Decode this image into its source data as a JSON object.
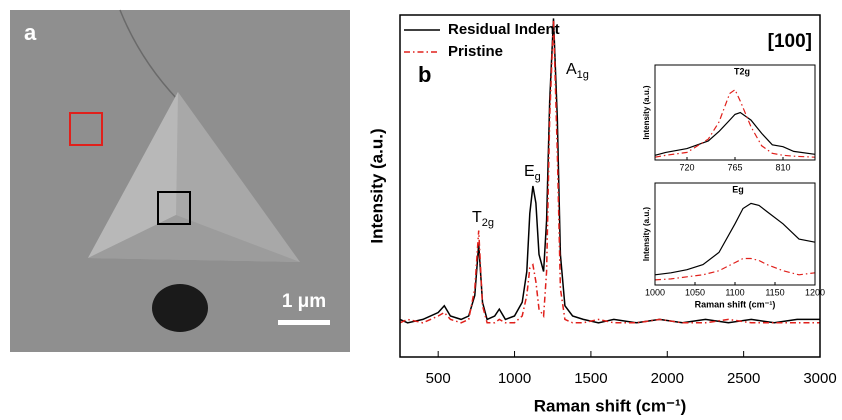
{
  "panel_a": {
    "label": "a",
    "scale_bar": "1 μm"
  },
  "chart_data": [
    {
      "type": "line",
      "panel_label": "b",
      "annotation": "[100]",
      "peak_labels": [
        {
          "text": "T",
          "sub": "2g"
        },
        {
          "text": "E",
          "sub": "g"
        },
        {
          "text": "A",
          "sub": "1g"
        }
      ],
      "xlabel": "Raman shift (cm⁻¹)",
      "ylabel": "Intensity (a.u.)",
      "xlim": [
        250,
        3000
      ],
      "xticks": [
        500,
        1000,
        1500,
        2000,
        2500,
        3000
      ],
      "ylim": [
        0,
        100
      ],
      "x": [
        250,
        300,
        400,
        500,
        540,
        580,
        650,
        700,
        740,
        765,
        790,
        820,
        870,
        900,
        940,
        1000,
        1050,
        1080,
        1100,
        1120,
        1140,
        1160,
        1190,
        1210,
        1230,
        1255,
        1280,
        1300,
        1330,
        1380,
        1450,
        1550,
        1650,
        1800,
        1950,
        2100,
        2250,
        2400,
        2550,
        2700,
        2850,
        3000
      ],
      "series": [
        {
          "name": "Residual Indent",
          "color": "#000000",
          "style": "solid",
          "values": [
            11,
            10,
            11,
            13,
            15,
            12,
            11,
            12,
            18,
            33,
            16,
            11,
            12,
            14,
            11,
            12,
            16,
            25,
            42,
            50,
            45,
            30,
            25,
            40,
            75,
            99,
            70,
            30,
            15,
            12,
            11,
            10,
            11,
            10,
            11,
            10,
            11,
            10,
            11,
            10,
            11,
            11
          ]
        },
        {
          "name": "Pristine",
          "color": "#e0201b",
          "style": "dashdot",
          "values": [
            10,
            11,
            10,
            12,
            13,
            11,
            10,
            11,
            20,
            37,
            15,
            10,
            10,
            11,
            10,
            10,
            12,
            18,
            26,
            27,
            22,
            14,
            12,
            25,
            70,
            98.5,
            60,
            20,
            11,
            10,
            10,
            11,
            10,
            10,
            11,
            10,
            10,
            11,
            10,
            10,
            10,
            10
          ]
        }
      ],
      "legend": "top-left"
    },
    {
      "type": "line",
      "annotation": "T2g",
      "ylabel": "Intensity (a.u.)",
      "xlim": [
        690,
        840
      ],
      "xticks": [
        720,
        765,
        810
      ],
      "ylim": [
        0,
        100
      ],
      "x": [
        690,
        700,
        720,
        740,
        750,
        760,
        765,
        770,
        780,
        790,
        800,
        810,
        820,
        840
      ],
      "series": [
        {
          "color": "#000000",
          "style": "solid",
          "values": [
            5,
            8,
            12,
            20,
            30,
            42,
            48,
            50,
            42,
            28,
            16,
            14,
            9,
            6
          ]
        },
        {
          "color": "#e0201b",
          "style": "dashdot",
          "values": [
            3,
            5,
            8,
            22,
            40,
            70,
            74,
            62,
            35,
            15,
            7,
            5,
            4,
            3
          ]
        }
      ]
    },
    {
      "type": "line",
      "annotation": "Eg",
      "xlabel": "Raman shift (cm⁻¹)",
      "ylabel": "Intensity (a.u.)",
      "xlim": [
        1000,
        1200
      ],
      "xticks": [
        1000,
        1050,
        1100,
        1150,
        1200
      ],
      "ylim": [
        0,
        100
      ],
      "x": [
        1000,
        1020,
        1040,
        1060,
        1080,
        1100,
        1110,
        1120,
        1130,
        1140,
        1160,
        1180,
        1200
      ],
      "series": [
        {
          "color": "#000000",
          "style": "solid",
          "values": [
            10,
            12,
            15,
            20,
            32,
            60,
            75,
            80,
            78,
            72,
            60,
            45,
            42
          ]
        },
        {
          "color": "#e0201b",
          "style": "dashdot",
          "values": [
            5,
            6,
            8,
            10,
            14,
            22,
            26,
            26,
            24,
            20,
            14,
            10,
            12
          ]
        }
      ]
    }
  ]
}
